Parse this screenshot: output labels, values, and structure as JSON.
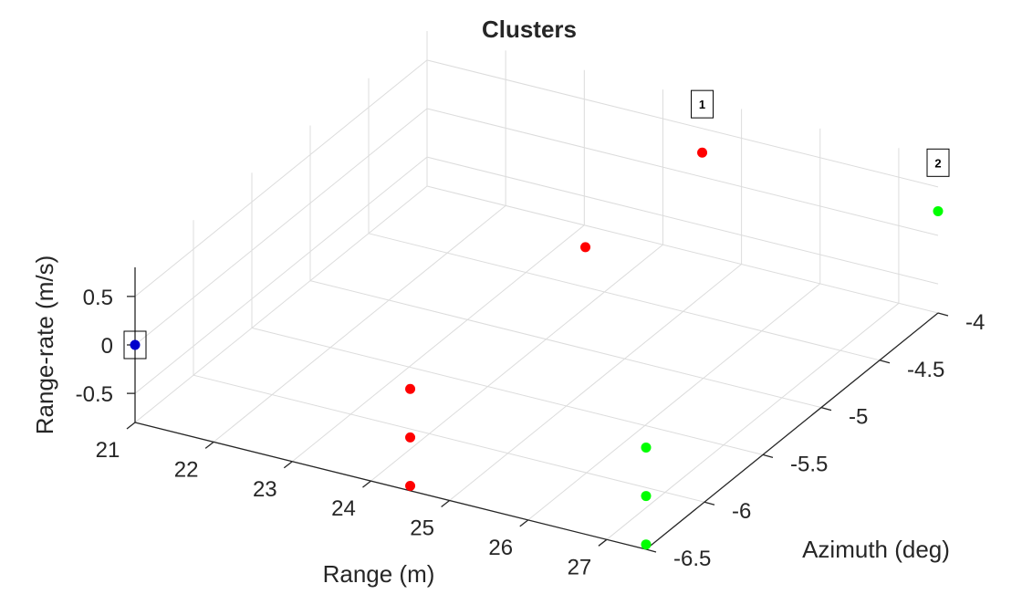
{
  "chart_data": {
    "type": "scatter",
    "title": "Clusters",
    "xlabel": "Range (m)",
    "ylabel": "Azimuth (deg)",
    "zlabel": "Range-rate (m/s)",
    "xlim": [
      21,
      27.5
    ],
    "ylim": [
      -6.5,
      -4
    ],
    "zlim": [
      -0.8,
      0.8
    ],
    "x_ticks": [
      "21",
      "22",
      "23",
      "24",
      "25",
      "26",
      "27"
    ],
    "y_ticks": [
      "-6.5",
      "-6",
      "-5.5",
      "-5",
      "-4.5",
      "-4"
    ],
    "z_ticks": [
      "-0.5",
      "0",
      "0.5"
    ],
    "grid": true,
    "series": [
      {
        "color": "#ff0000",
        "points": [
          {
            "x": 24.5,
            "y": -6.5,
            "z": -0.75
          },
          {
            "x": 24.5,
            "y": -6.5,
            "z": -0.25
          },
          {
            "x": 24.5,
            "y": -6.5,
            "z": 0.25
          },
          {
            "x": 24.5,
            "y": -5.0,
            "z": 0.25
          },
          {
            "x": 24.5,
            "y": -4.0,
            "z": 0.25
          }
        ]
      },
      {
        "color": "#00ff00",
        "points": [
          {
            "x": 27.5,
            "y": -6.5,
            "z": -0.75
          },
          {
            "x": 27.5,
            "y": -6.5,
            "z": -0.25
          },
          {
            "x": 27.5,
            "y": -6.5,
            "z": 0.25
          },
          {
            "x": 27.5,
            "y": -4.0,
            "z": 0.25
          }
        ]
      },
      {
        "color": "#0000cc",
        "points": [
          {
            "x": 21.0,
            "y": -6.5,
            "z": 0.0
          }
        ]
      }
    ],
    "annotations": [
      {
        "text": "1",
        "x": 24.5,
        "y": -4.0,
        "z": 0.75
      },
      {
        "text": "2",
        "x": 27.5,
        "y": -4.0,
        "z": 0.75
      },
      {
        "text": "",
        "x": 21.0,
        "y": -6.5,
        "z": 0.0
      }
    ]
  }
}
